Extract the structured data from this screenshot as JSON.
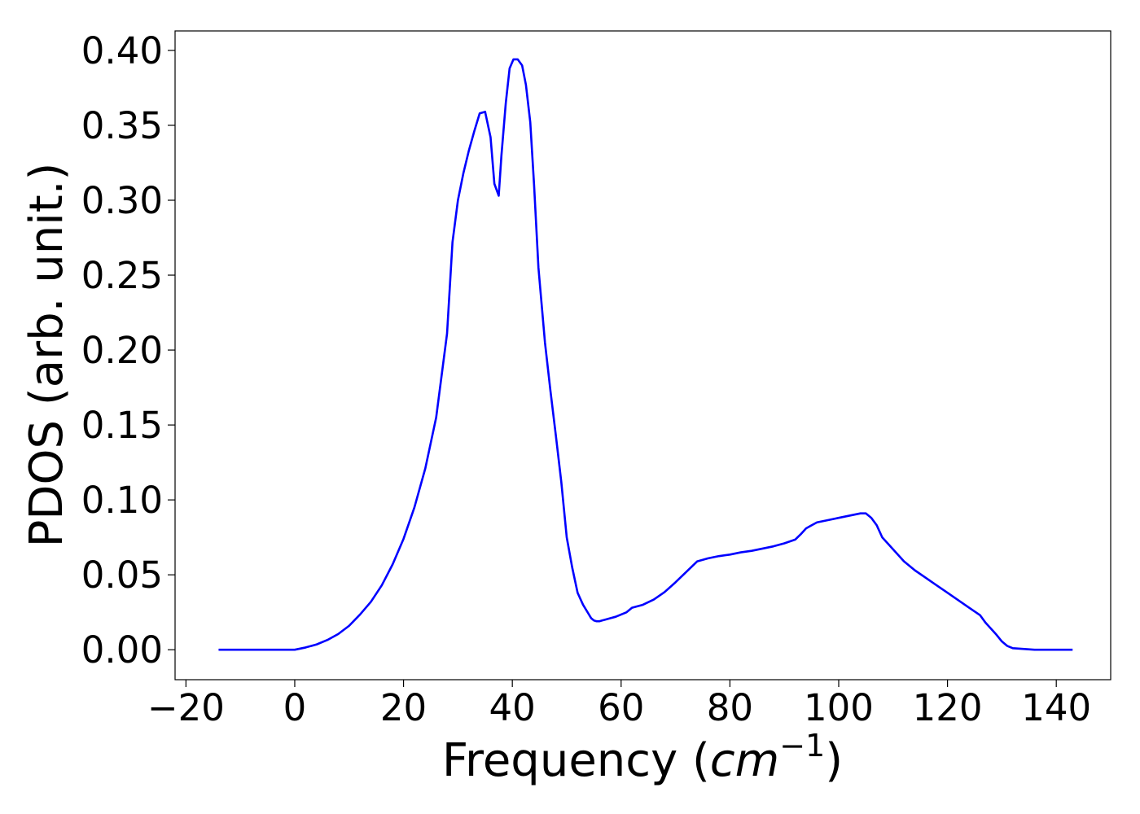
{
  "chart_data": {
    "type": "line",
    "title": "",
    "xlabel": {
      "prefix": "Frequency (",
      "unit": "cm",
      "exponent": "−1",
      "suffix": ")"
    },
    "ylabel": "PDOS (arb. unit.)",
    "xlim": [
      -22,
      150
    ],
    "ylim": [
      -0.02,
      0.413
    ],
    "x_ticks": [
      -20,
      0,
      20,
      40,
      60,
      80,
      100,
      120,
      140
    ],
    "x_tick_labels": [
      "−20",
      "0",
      "20",
      "40",
      "60",
      "80",
      "100",
      "120",
      "140"
    ],
    "y_ticks": [
      0.0,
      0.05,
      0.1,
      0.15,
      0.2,
      0.25,
      0.3,
      0.35,
      0.4
    ],
    "y_tick_labels": [
      "0.00",
      "0.05",
      "0.10",
      "0.15",
      "0.20",
      "0.25",
      "0.30",
      "0.35",
      "0.40"
    ],
    "grid": false,
    "series": [
      {
        "color": "#0000ff",
        "x": [
          -14,
          -10,
          -5,
          0,
          2,
          4,
          6,
          8,
          10,
          12,
          14,
          16,
          18,
          20,
          22,
          24,
          26,
          28,
          29,
          30,
          31,
          32,
          33,
          34,
          35,
          36,
          36.7,
          37.5,
          38,
          38.8,
          39.5,
          40.2,
          41,
          41.8,
          42.5,
          43.3,
          44,
          44.8,
          46,
          47,
          48,
          49,
          50,
          51,
          52,
          53,
          54,
          54.5,
          55,
          55.5,
          56,
          56.5,
          57,
          58,
          59,
          60,
          61,
          62,
          64,
          66,
          68,
          70,
          72,
          74,
          76,
          78,
          80,
          82,
          84,
          86,
          88,
          90,
          92,
          93,
          94,
          95,
          96,
          98,
          100,
          102,
          104,
          105,
          106,
          107,
          108,
          110,
          112,
          114,
          116,
          118,
          120,
          122,
          124,
          126,
          127,
          128,
          129,
          130,
          131,
          132,
          136,
          143
        ],
        "y": [
          0.0,
          0.0,
          0.0,
          0.0,
          0.0015,
          0.0035,
          0.0065,
          0.0105,
          0.016,
          0.0235,
          0.032,
          0.043,
          0.057,
          0.074,
          0.095,
          0.121,
          0.155,
          0.211,
          0.272,
          0.3,
          0.318,
          0.333,
          0.346,
          0.358,
          0.359,
          0.342,
          0.311,
          0.303,
          0.33,
          0.365,
          0.388,
          0.394,
          0.394,
          0.39,
          0.377,
          0.352,
          0.31,
          0.255,
          0.205,
          0.173,
          0.143,
          0.112,
          0.075,
          0.055,
          0.038,
          0.03,
          0.024,
          0.021,
          0.0195,
          0.019,
          0.019,
          0.0195,
          0.02,
          0.021,
          0.022,
          0.0235,
          0.025,
          0.028,
          0.03,
          0.0335,
          0.0385,
          0.045,
          0.052,
          0.059,
          0.061,
          0.0625,
          0.0635,
          0.065,
          0.066,
          0.0675,
          0.069,
          0.071,
          0.0735,
          0.077,
          0.081,
          0.083,
          0.085,
          0.0865,
          0.088,
          0.0895,
          0.091,
          0.091,
          0.088,
          0.083,
          0.075,
          0.067,
          0.059,
          0.053,
          0.048,
          0.043,
          0.038,
          0.033,
          0.028,
          0.023,
          0.018,
          0.014,
          0.01,
          0.0055,
          0.0025,
          0.001,
          0.0,
          0.0
        ]
      }
    ]
  }
}
